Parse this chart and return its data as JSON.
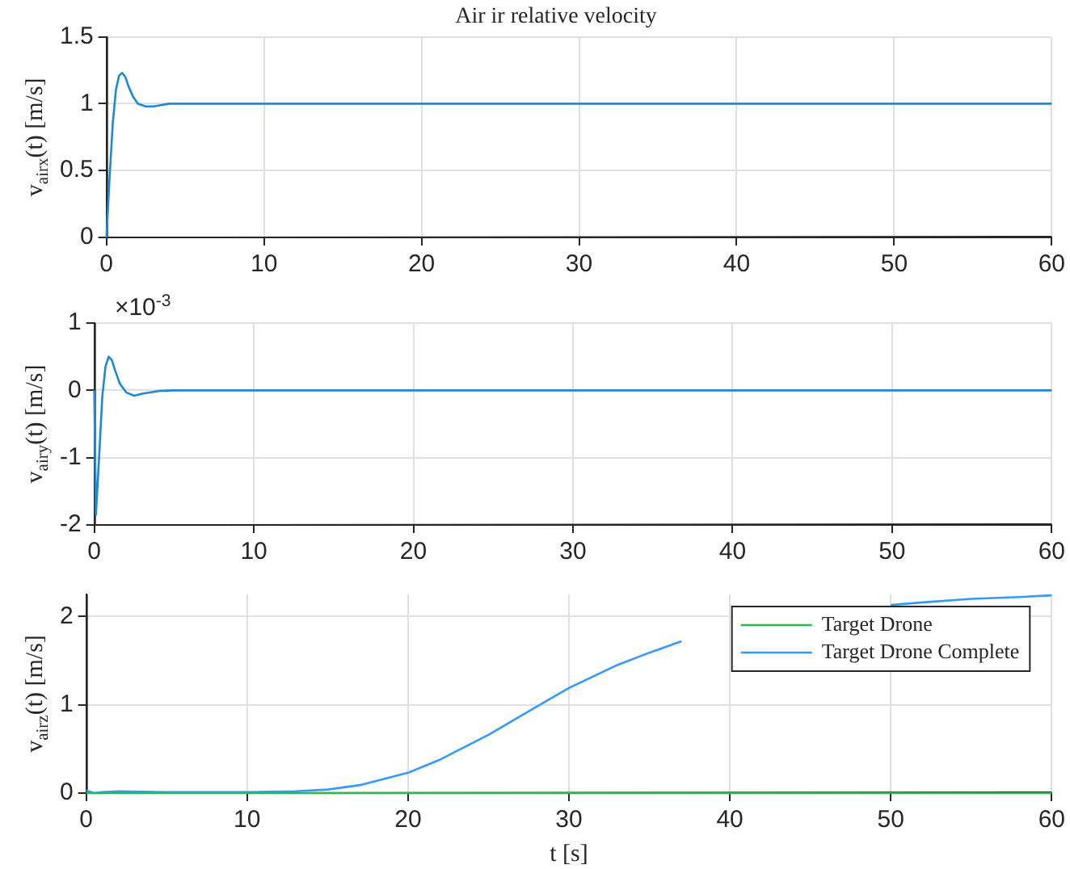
{
  "chart_data": [
    {
      "type": "line",
      "title": "Air ir relative velocity",
      "ylabel": "v$_{airx}$(t) [m/s]",
      "xlim": [
        0,
        60
      ],
      "xticks": [
        0,
        10,
        20,
        30,
        40,
        50,
        60
      ],
      "ylim": [
        0,
        1.5
      ],
      "yticks": [
        0,
        0.5,
        1,
        1.5
      ],
      "grid": true,
      "x": [
        0,
        0.2,
        0.4,
        0.6,
        0.8,
        1.0,
        1.2,
        1.4,
        1.7,
        2.0,
        2.5,
        3,
        3.5,
        4,
        5,
        10,
        20,
        30,
        40,
        50,
        60
      ],
      "series": [
        {
          "color": "#1e88d4",
          "values": [
            0,
            0.45,
            0.85,
            1.1,
            1.21,
            1.23,
            1.2,
            1.13,
            1.05,
            1.0,
            0.98,
            0.98,
            0.99,
            1,
            1,
            1,
            1,
            1,
            1,
            1,
            1
          ]
        }
      ]
    },
    {
      "type": "line",
      "ylabel": "v$_{airy}$(t) [m/s]",
      "annotations": [
        "×10$^{-3}$"
      ],
      "xlim": [
        0,
        60
      ],
      "xticks": [
        0,
        10,
        20,
        30,
        40,
        50,
        60
      ],
      "ylim": [
        -2,
        1
      ],
      "yticks": [
        -2,
        -1,
        0,
        1
      ],
      "grid": true,
      "x": [
        0,
        0.1,
        0.3,
        0.5,
        0.7,
        0.9,
        1.1,
        1.3,
        1.6,
        2,
        2.5,
        3,
        4,
        5,
        10,
        20,
        30,
        40,
        50,
        60
      ],
      "series": [
        {
          "color": "#1e88d4",
          "values": [
            0,
            -1.85,
            -1.0,
            -0.1,
            0.35,
            0.5,
            0.45,
            0.3,
            0.1,
            -0.03,
            -0.08,
            -0.05,
            -0.01,
            0,
            0,
            0,
            0,
            0,
            0,
            0
          ]
        }
      ]
    },
    {
      "type": "line",
      "ylabel": "v$_{airz}$(t) [m/s]",
      "xlabel": "t [s]",
      "xlim": [
        0,
        60
      ],
      "xticks": [
        0,
        10,
        20,
        30,
        40,
        50,
        60
      ],
      "ylim": [
        0,
        2.25
      ],
      "yticks": [
        0,
        1,
        2
      ],
      "grid": true,
      "legend": "top right",
      "series": [
        {
          "name": "Target Drone",
          "color": "#2db84d",
          "x": [
            0,
            60
          ],
          "values": [
            0,
            0
          ]
        },
        {
          "name": "Target Drone Complete",
          "color": "#3399ff",
          "x": [
            0,
            0.5,
            1,
            2,
            5,
            10,
            13,
            15,
            17,
            20,
            22,
            25,
            28,
            30,
            33,
            35,
            37,
            40,
            43,
            46.5,
            48,
            50,
            52,
            55,
            58,
            60
          ],
          "values": [
            0.03,
            0,
            0.01,
            0.02,
            0.01,
            0.01,
            0.02,
            0.04,
            0.09,
            0.23,
            0.38,
            0.66,
            0.98,
            1.19,
            1.45,
            1.59,
            1.72,
            null,
            null,
            null,
            null,
            2.13,
            2.16,
            2.2,
            2.22,
            2.24
          ]
        }
      ]
    }
  ]
}
